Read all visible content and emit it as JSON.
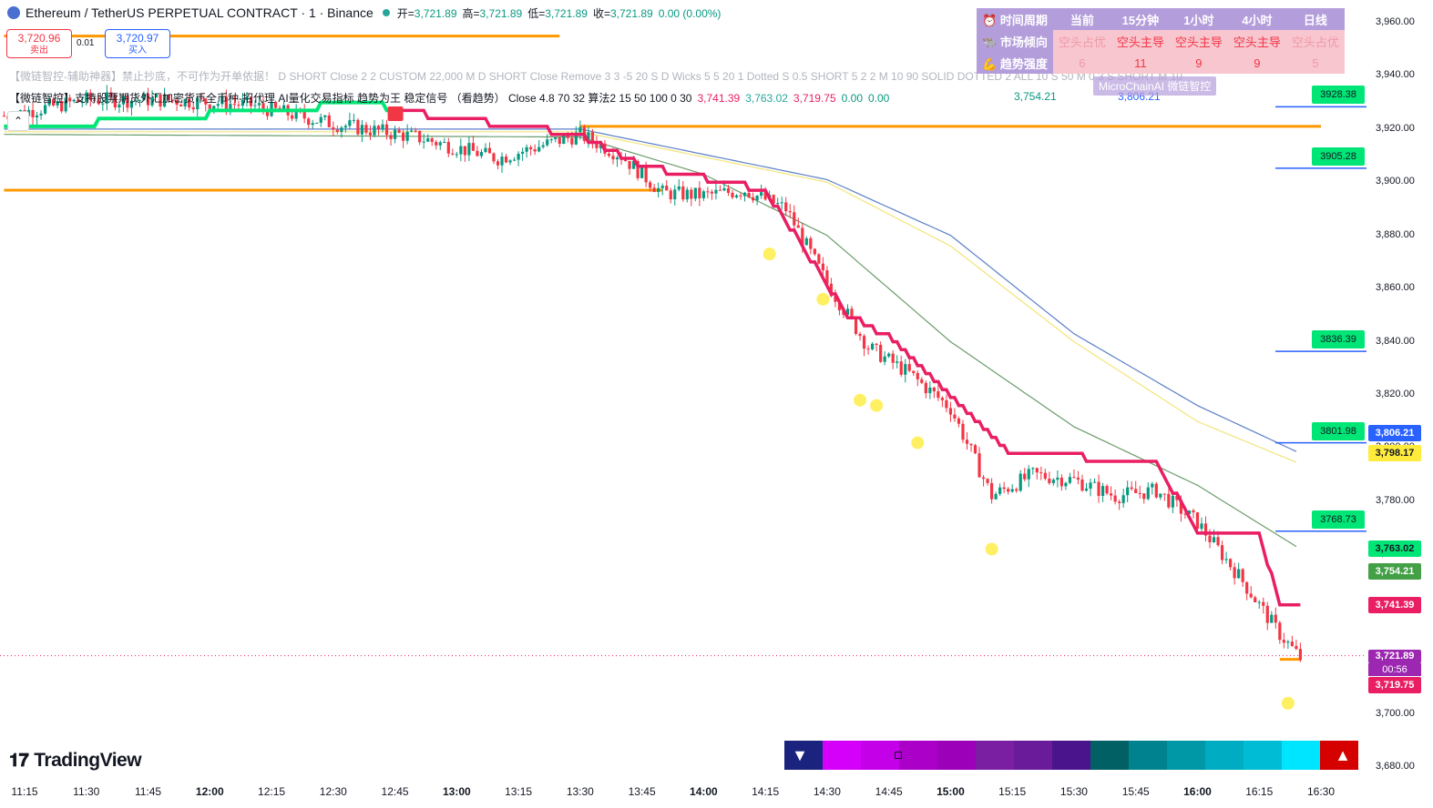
{
  "header": {
    "symbol": "Ethereum / TetherUS PERPETUAL CONTRACT · 1 · Binance",
    "open_label": "开=",
    "open": "3,721.89",
    "high_label": "高=",
    "high": "3,721.89",
    "low_label": "低=",
    "low": "3,721.89",
    "close_label": "收=",
    "close": "3,721.89",
    "change": "0.00 (0.00%)"
  },
  "trade": {
    "sell_price": "3,720.96",
    "sell_label": "卖出",
    "spread": "0.01",
    "buy_price": "3,720.97",
    "buy_label": "买入"
  },
  "indicators": {
    "line1": "【微链智控-辅助神器】禁止抄底，不可作为开单依据！ D SHORT Close 2 2 CUSTOM 22,000 M D SHORT Close Remove 3 3 -5 20 S D Wicks 5 5 20 1 Dotted S 0.5 SHORT 5 2 2 M 10 90 SOLID DOTTED 2 ALL 10 S 50 M 0.3 S SHORT M 10",
    "line2": "【微链智控】支持股票期货外汇加密货币全币种-招代理 AI量化交易指标 趋势为王 稳定信号 （看趋势） Close 4.8 70 32 算法2 15 50 100 0 30",
    "v1": "3,741.39",
    "v2": "3,763.02",
    "v3": "3,719.75",
    "v4": "0.00",
    "v5": "0.00",
    "extra": "3,754.21",
    "extra2": "3,806.21"
  },
  "info_table": {
    "headers": [
      "时间周期",
      "当前",
      "15分钟",
      "1小时",
      "4小时",
      "日线"
    ],
    "rows": [
      {
        "label": "市场倾向",
        "cells": [
          "空头占优",
          "空头主导",
          "空头主导",
          "空头主导",
          "空头占优"
        ]
      },
      {
        "label": "趋势强度",
        "cells": [
          "6",
          "11",
          "9",
          "9",
          "5"
        ]
      }
    ],
    "watermark": "MicroChainAI 微链智控"
  },
  "logo": "TradingView",
  "x_axis": [
    "11:15",
    "11:30",
    "11:45",
    "12:00",
    "12:15",
    "12:30",
    "12:45",
    "13:00",
    "13:15",
    "13:30",
    "13:45",
    "14:00",
    "14:15",
    "14:30",
    "14:45",
    "15:00",
    "15:15",
    "15:30",
    "15:45",
    "16:00",
    "16:15",
    "16:30"
  ],
  "x_axis_bold": [
    "12:00",
    "13:00",
    "14:00",
    "15:00",
    "16:00"
  ],
  "y_axis": [
    "3,960.00",
    "3,940.00",
    "3,920.00",
    "3,900.00",
    "3,880.00",
    "3,860.00",
    "3,840.00",
    "3,820.00",
    "3,800.00",
    "3,780.00",
    "3,760.00",
    "3,740.00",
    "3,720.00",
    "3,700.00",
    "3,680.00"
  ],
  "levels": [
    "3928.38",
    "3905.28",
    "3836.39",
    "3801.98",
    "3768.73"
  ],
  "price_labels": {
    "blue": "3,806.21",
    "yellow": "3,798.17",
    "green": "3,763.02",
    "dgreen": "3,754.21",
    "pink": "3,741.39",
    "purple": "3,721.89",
    "countdown": "00:56",
    "pink2": "3,719.75"
  },
  "colors": {
    "up": "#089981",
    "down": "#f23645",
    "supertrend_bear": "#e91e63",
    "supertrend_bull": "#00e676",
    "ma_blue": "#5b7fc7",
    "ma_yellow": "#f2e57a",
    "ma_green": "#6b9c6b",
    "level": "#ff9800",
    "dots": "#ffeb3b"
  },
  "chart_data": {
    "type": "line",
    "title": "",
    "y_range": [
      3676,
      3966
    ],
    "x_range": [
      "11:10",
      "16:35"
    ],
    "series": [
      {
        "kind": "close",
        "x": [
          "11:10",
          "11:30",
          "11:50",
          "12:10",
          "12:30",
          "12:50",
          "13:10",
          "13:30",
          "13:40",
          "13:50",
          "14:00",
          "14:10",
          "14:20",
          "14:30",
          "14:40",
          "14:50",
          "15:00",
          "15:10",
          "15:20",
          "15:30",
          "15:40",
          "15:50",
          "16:00",
          "16:10",
          "16:20",
          "16:25"
        ],
        "y": [
          3925,
          3931,
          3931,
          3929,
          3922,
          3917,
          3909,
          3918,
          3910,
          3896,
          3895,
          3897,
          3890,
          3862,
          3838,
          3828,
          3815,
          3782,
          3790,
          3788,
          3782,
          3784,
          3772,
          3752,
          3730,
          3721
        ]
      },
      {
        "kind": "supertrend",
        "x": [
          "11:10",
          "12:40",
          "12:45",
          "13:30",
          "13:45",
          "14:15",
          "14:35",
          "14:45",
          "15:05",
          "15:15",
          "15:50",
          "16:00",
          "16:15",
          "16:20",
          "16:25"
        ],
        "y": [
          3920,
          3930,
          3927,
          3918,
          3906,
          3897,
          3850,
          3842,
          3812,
          3798,
          3795,
          3768,
          3768,
          3741,
          3741
        ]
      },
      {
        "kind": "ma",
        "x": [
          "11:10",
          "13:30",
          "14:30",
          "15:00",
          "15:30",
          "16:00",
          "16:25"
        ],
        "y": [
          3920,
          3920,
          3901,
          3880,
          3843,
          3816,
          3798
        ]
      },
      {
        "kind": "ma",
        "x": [
          "11:10",
          "13:30",
          "14:30",
          "15:00",
          "15:30",
          "16:00",
          "16:25"
        ],
        "y": [
          3919,
          3919,
          3900,
          3876,
          3840,
          3810,
          3794
        ]
      },
      {
        "kind": "ma",
        "x": [
          "11:10",
          "13:30",
          "14:00",
          "14:30",
          "15:00",
          "15:30",
          "16:00",
          "16:25"
        ],
        "y": [
          3918,
          3917,
          3903,
          3880,
          3840,
          3808,
          3786,
          3762
        ]
      }
    ],
    "horizontal_levels": [
      {
        "y": 3955,
        "x": [
          "11:10",
          "13:25"
        ]
      },
      {
        "y": 3921,
        "x": [
          "13:30",
          "16:30"
        ]
      },
      {
        "y": 3897,
        "x": [
          "11:10",
          "13:50"
        ]
      },
      {
        "y": 3720.5,
        "x": [
          "16:20",
          "16:25"
        ]
      }
    ],
    "signal_dots": [
      {
        "x": "14:16",
        "y": 3873
      },
      {
        "x": "14:29",
        "y": 3856
      },
      {
        "x": "14:38",
        "y": 3818
      },
      {
        "x": "14:42",
        "y": 3816
      },
      {
        "x": "14:52",
        "y": 3802
      },
      {
        "x": "15:10",
        "y": 3762
      },
      {
        "x": "16:22",
        "y": 3704
      }
    ]
  }
}
